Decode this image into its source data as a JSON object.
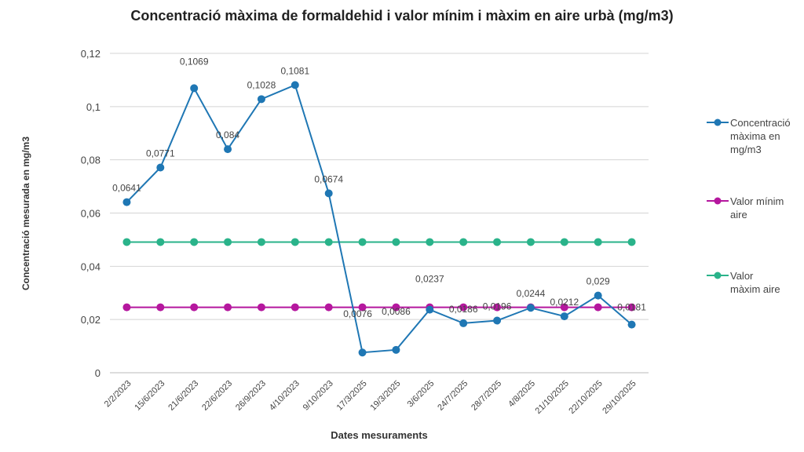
{
  "chart_data": {
    "type": "line",
    "title": "Concentració màxima de formaldehid i valor mínim i màxim en aire urbà (mg/m3)",
    "xlabel": "Dates mesuraments",
    "ylabel": "Concentració mesurada en mg/m3",
    "ylim": [
      0,
      0.12
    ],
    "yticks": [
      "0",
      "0,02",
      "0,04",
      "0,06",
      "0,08",
      "0,1",
      "0,12"
    ],
    "grid": true,
    "legend": "right",
    "categories": [
      "2/2/2023",
      "15/6/2023",
      "21/6/2023",
      "22/6/2023",
      "26/9/2023",
      "4/10/2023",
      "9/10/2023",
      "17/3/2025",
      "19/3/2025",
      "3/6/2025",
      "24/7/2025",
      "28/7/2025",
      "4/8/2025",
      "21/10/2025",
      "22/10/2025",
      "29/10/2025"
    ],
    "series": [
      {
        "name": "Concentració màxima en mg/m3",
        "color": "#1f77b4",
        "values": [
          0.0641,
          0.0771,
          0.1069,
          0.084,
          0.1028,
          0.1081,
          0.0674,
          0.0076,
          0.0086,
          0.0237,
          0.0186,
          0.0196,
          0.0244,
          0.0212,
          0.029,
          0.0181
        ],
        "labels": [
          "0,0641",
          "0,0771",
          "0,1069",
          "0,084",
          "0,1028",
          "0,1081",
          "0,0674",
          "0,0076",
          "0,0086",
          "0,0237",
          "0,0186",
          "0,0196",
          "0,0244",
          "0,0212",
          "0,029",
          "0,0181"
        ]
      },
      {
        "name": "Valor mínim aire",
        "color": "#b5179e",
        "values": [
          0.0246,
          0.0246,
          0.0246,
          0.0246,
          0.0246,
          0.0246,
          0.0246,
          0.0246,
          0.0246,
          0.0246,
          0.0246,
          0.0246,
          0.0246,
          0.0246,
          0.0246,
          0.0246
        ]
      },
      {
        "name": "Valor màxim aire",
        "color": "#2ab38a",
        "values": [
          0.0491,
          0.0491,
          0.0491,
          0.0491,
          0.0491,
          0.0491,
          0.0491,
          0.0491,
          0.0491,
          0.0491,
          0.0491,
          0.0491,
          0.0491,
          0.0491,
          0.0491,
          0.0491
        ]
      }
    ]
  }
}
